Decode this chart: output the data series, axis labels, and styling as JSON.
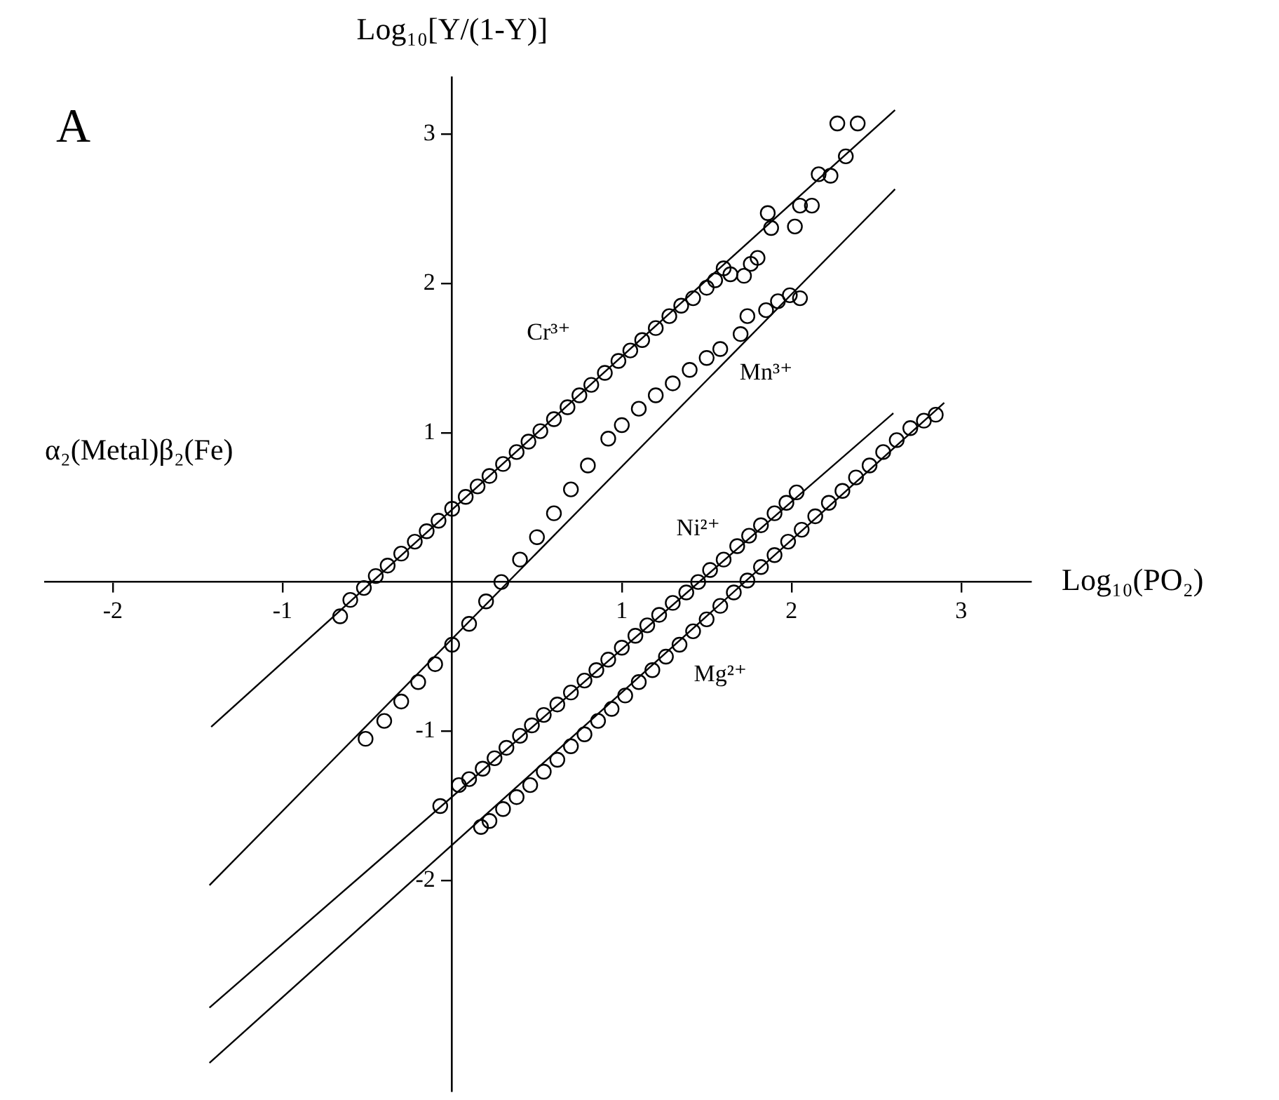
{
  "chart_data": {
    "type": "scatter",
    "xlabel": "Log₁₀(PO₂)",
    "ylabel": "Log₁₀[Y/(1-Y)]",
    "xlim": [
      -2.4,
      3.41
    ],
    "ylim": [
      -3.41,
      3.38
    ],
    "xticks": [
      -2,
      -1,
      1,
      2,
      3
    ],
    "yticks": [
      -2,
      -1,
      1,
      2,
      3
    ],
    "grid": false,
    "legend": false,
    "marker": "circle",
    "annotations": [
      "A",
      "α₂(Metal)β₂(Fe)"
    ],
    "series": [
      {
        "name": "Cr³⁺",
        "color": "#000000",
        "x": [
          -0.66,
          -0.6,
          -0.52,
          -0.45,
          -0.38,
          -0.3,
          -0.22,
          -0.15,
          -0.08,
          0,
          0.08,
          0.15,
          0.22,
          0.3,
          0.38,
          0.45,
          0.52,
          0.6,
          0.68,
          0.75,
          0.82,
          0.9,
          0.98,
          1.05,
          1.12,
          1.2,
          1.28,
          1.35,
          1.42,
          1.5,
          1.55,
          1.6,
          1.64,
          1.72,
          1.76,
          1.8,
          1.86,
          1.88,
          2.02,
          2.05,
          2.12,
          2.16,
          2.23,
          2.27,
          2.32,
          2.39
        ],
        "values": [
          -0.23,
          -0.12,
          -0.04,
          0.04,
          0.11,
          0.19,
          0.27,
          0.34,
          0.41,
          0.49,
          0.57,
          0.64,
          0.71,
          0.79,
          0.87,
          0.94,
          1.01,
          1.09,
          1.17,
          1.25,
          1.32,
          1.4,
          1.48,
          1.55,
          1.62,
          1.7,
          1.78,
          1.85,
          1.9,
          1.97,
          2.02,
          2.1,
          2.06,
          2.05,
          2.13,
          2.17,
          2.47,
          2.37,
          2.38,
          2.52,
          2.52,
          2.73,
          2.72,
          3.07,
          2.85,
          3.07
        ]
      },
      {
        "name": "Mn³⁺",
        "color": "#000000",
        "x": [
          -0.51,
          -0.4,
          -0.3,
          -0.2,
          -0.1,
          0,
          0.1,
          0.2,
          0.29,
          0.4,
          0.5,
          0.6,
          0.7,
          0.8,
          0.92,
          1.0,
          1.1,
          1.2,
          1.3,
          1.4,
          1.5,
          1.58,
          1.7,
          1.74,
          1.85,
          1.92,
          1.99,
          2.05
        ],
        "values": [
          -1.05,
          -0.93,
          -0.8,
          -0.67,
          -0.55,
          -0.42,
          -0.28,
          -0.13,
          0,
          0.15,
          0.3,
          0.46,
          0.62,
          0.78,
          0.96,
          1.05,
          1.16,
          1.25,
          1.33,
          1.42,
          1.5,
          1.56,
          1.66,
          1.78,
          1.82,
          1.88,
          1.92,
          1.9
        ]
      },
      {
        "name": "Ni²⁺",
        "color": "#000000",
        "x": [
          -0.07,
          0.04,
          0.1,
          0.18,
          0.25,
          0.32,
          0.4,
          0.47,
          0.54,
          0.62,
          0.7,
          0.78,
          0.85,
          0.92,
          1.0,
          1.08,
          1.15,
          1.22,
          1.3,
          1.38,
          1.45,
          1.52,
          1.6,
          1.68,
          1.75,
          1.82,
          1.9,
          1.97,
          2.03
        ],
        "values": [
          -1.5,
          -1.36,
          -1.32,
          -1.25,
          -1.18,
          -1.11,
          -1.03,
          -0.96,
          -0.89,
          -0.82,
          -0.74,
          -0.66,
          -0.59,
          -0.52,
          -0.44,
          -0.36,
          -0.29,
          -0.22,
          -0.14,
          -0.07,
          0,
          0.08,
          0.15,
          0.24,
          0.31,
          0.38,
          0.46,
          0.53,
          0.6
        ]
      },
      {
        "name": "Mg²⁺",
        "color": "#000000",
        "x": [
          0.17,
          0.22,
          0.3,
          0.38,
          0.46,
          0.54,
          0.62,
          0.7,
          0.78,
          0.86,
          0.94,
          1.02,
          1.1,
          1.18,
          1.26,
          1.34,
          1.42,
          1.5,
          1.58,
          1.66,
          1.74,
          1.82,
          1.9,
          1.98,
          2.06,
          2.14,
          2.22,
          2.3,
          2.38,
          2.46,
          2.54,
          2.62,
          2.7,
          2.78,
          2.85
        ],
        "values": [
          -1.64,
          -1.6,
          -1.52,
          -1.44,
          -1.36,
          -1.27,
          -1.19,
          -1.1,
          -1.02,
          -0.93,
          -0.85,
          -0.76,
          -0.67,
          -0.59,
          -0.5,
          -0.42,
          -0.33,
          -0.25,
          -0.16,
          -0.07,
          0.01,
          0.1,
          0.18,
          0.27,
          0.35,
          0.44,
          0.53,
          0.61,
          0.7,
          0.78,
          0.87,
          0.95,
          1.03,
          1.08,
          1.12
        ]
      },
      {
        "type": "line",
        "color": "#000000",
        "marker": "none",
        "x": [
          -1.42,
          2.61
        ],
        "values": [
          -0.97,
          3.16
        ]
      },
      {
        "type": "line",
        "color": "#000000",
        "marker": "none",
        "x": [
          -1.43,
          2.61
        ],
        "values": [
          -2.03,
          2.63
        ]
      },
      {
        "type": "line",
        "color": "#000000",
        "marker": "none",
        "x": [
          -1.43,
          2.6
        ],
        "values": [
          -2.85,
          1.13
        ]
      },
      {
        "type": "line",
        "color": "#000000",
        "marker": "none",
        "x": [
          -1.43,
          2.9
        ],
        "values": [
          -3.22,
          1.2
        ]
      }
    ]
  }
}
